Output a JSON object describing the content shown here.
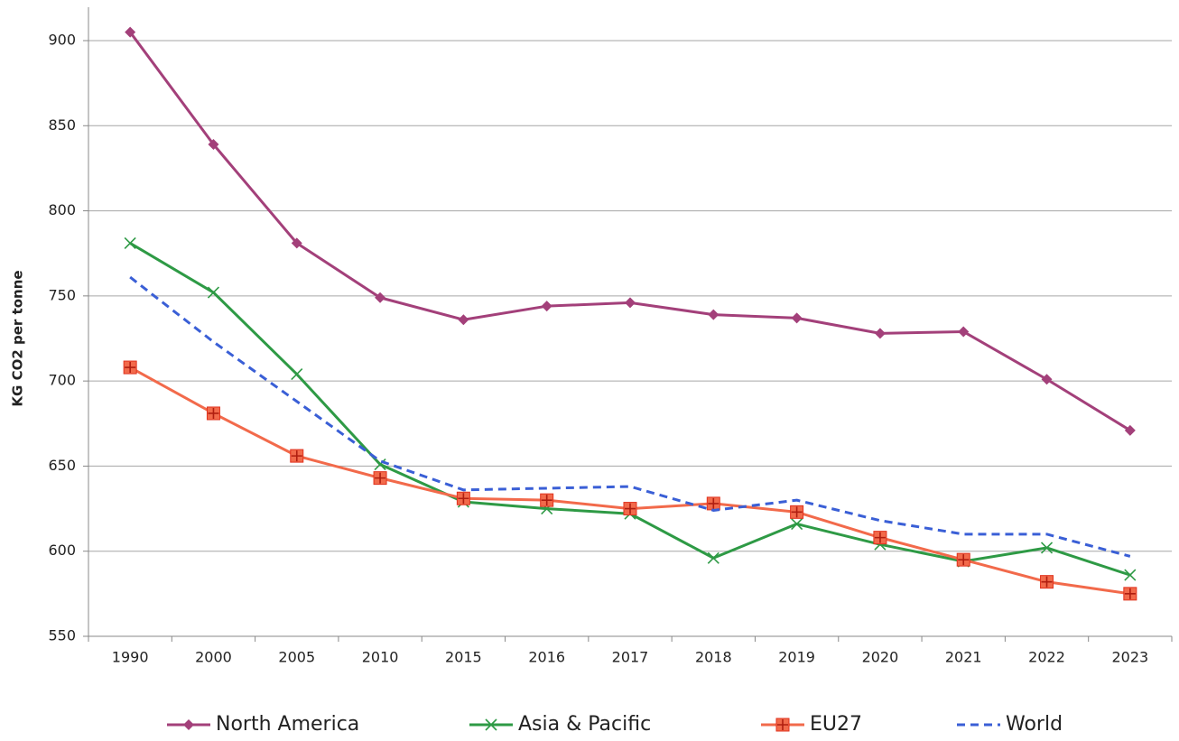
{
  "chart_data": {
    "type": "line",
    "y_label": "KG CO2 per tonne",
    "categories": [
      "1990",
      "2000",
      "2005",
      "2010",
      "2015",
      "2016",
      "2017",
      "2018",
      "2019",
      "2020",
      "2021",
      "2022",
      "2023"
    ],
    "series": [
      {
        "name": "North America",
        "color": "#a3407a",
        "marker": "diamond",
        "dashed": false,
        "values": [
          905,
          839,
          781,
          749,
          736,
          744,
          746,
          739,
          737,
          728,
          729,
          701,
          671
        ]
      },
      {
        "name": "Asia & Pacific",
        "color": "#2e9a45",
        "marker": "x",
        "dashed": false,
        "values": [
          781,
          752,
          704,
          651,
          629,
          625,
          622,
          596,
          616,
          604,
          594,
          602,
          586
        ]
      },
      {
        "name": "EU27",
        "color": "#f26a4b",
        "marker": "square-plus",
        "dashed": false,
        "values": [
          708,
          681,
          656,
          643,
          631,
          630,
          625,
          628,
          623,
          608,
          595,
          582,
          575
        ]
      },
      {
        "name": "World",
        "color": "#3a5fd6",
        "marker": "none",
        "dashed": true,
        "values": [
          761,
          723,
          688,
          653,
          636,
          637,
          638,
          624,
          630,
          618,
          610,
          610,
          597
        ]
      }
    ],
    "ylim": [
      550,
      900
    ],
    "yticks": [
      550,
      600,
      650,
      700,
      750,
      800,
      850,
      900
    ],
    "grid": true,
    "legend": "bottom"
  }
}
